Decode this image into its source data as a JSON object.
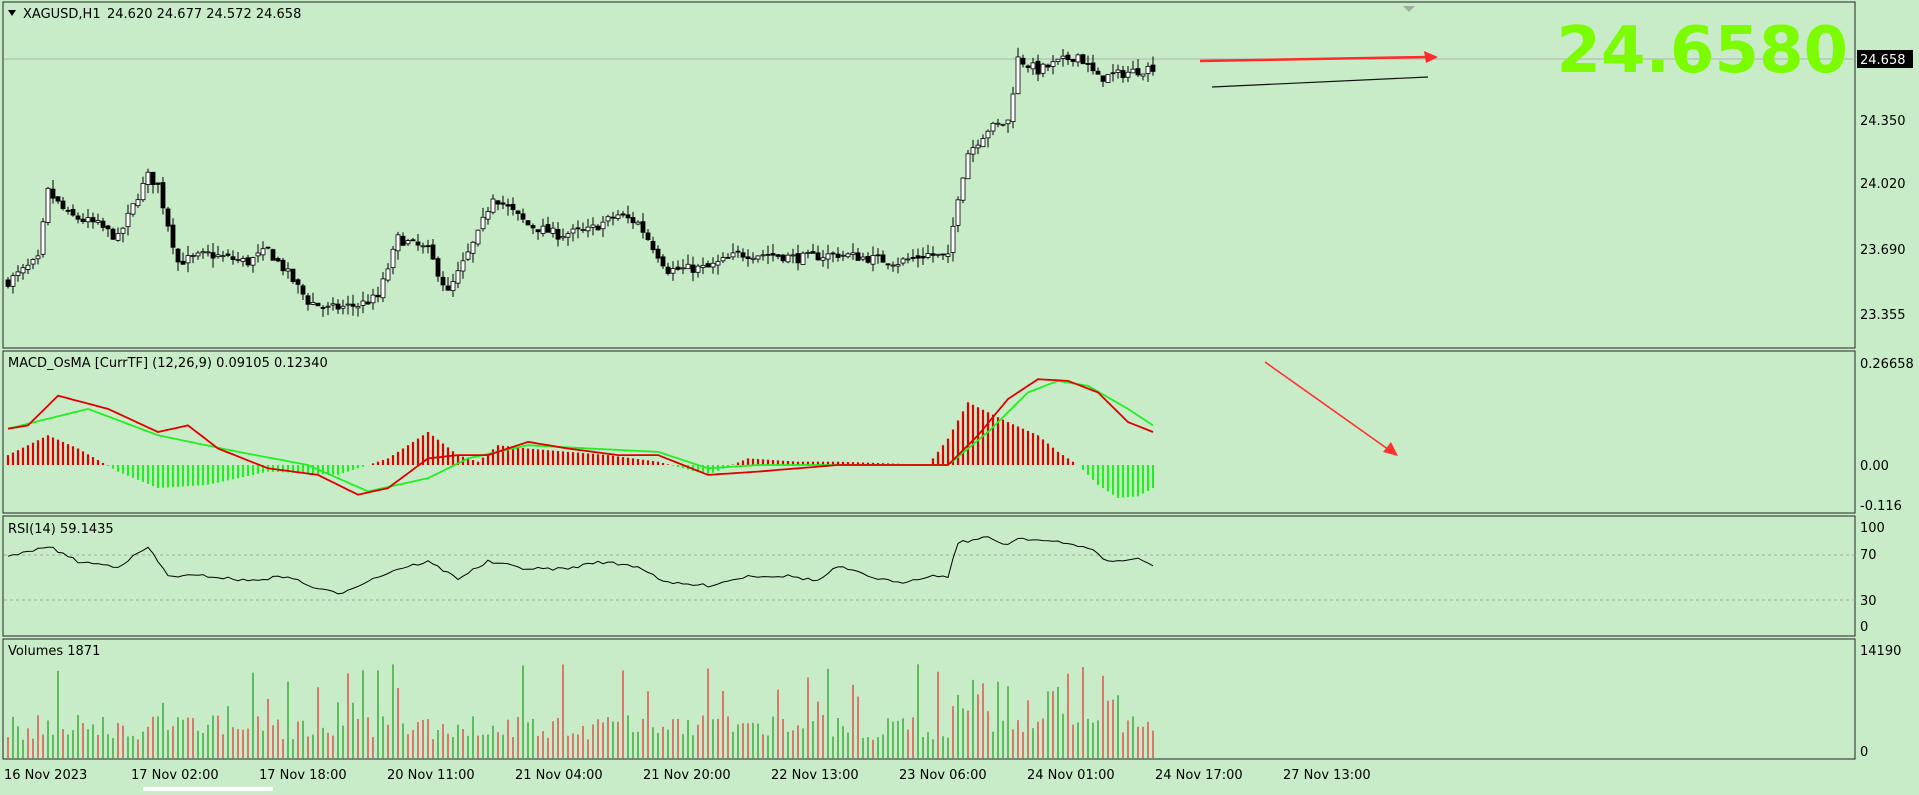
{
  "window": {
    "symbol": "XAGUSD,H1",
    "ohlc": "24.620 24.677 24.572 24.658",
    "big_price": "24.6580",
    "current_price_tag": "24.658"
  },
  "colors": {
    "background": "#c8ecc8",
    "bull": "#ffffff",
    "bear": "#000000",
    "macd_pos": "#e00000",
    "macd_neg": "#22ee22",
    "signal": "#22ee22",
    "macd_line": "#e00000",
    "arrow": "#ff2020",
    "big_price": "#7cfc00",
    "vol_up": "#1a9a1a",
    "vol_down": "#e03030"
  },
  "price_panel": {
    "axis_labels": [
      "24.658",
      "24.350",
      "24.020",
      "23.690",
      "23.355"
    ],
    "ylim": [
      23.22,
      24.99
    ]
  },
  "macd_panel": {
    "label": "MACD_OsMA [CurrTF] (12,26,9) 0.09105 0.12340",
    "axis_labels": [
      "0.26658",
      "0.00",
      "-0.116"
    ],
    "ylim": [
      -0.15,
      0.28
    ]
  },
  "rsi_panel": {
    "label": "RSI(14) 59.1435",
    "axis_labels": [
      "100",
      "70",
      "30",
      "0"
    ],
    "levels": [
      70,
      30
    ]
  },
  "volume_panel": {
    "label": "Volumes 1871",
    "axis_labels": [
      "14190",
      "0"
    ],
    "max": 14190
  },
  "time_labels": [
    "16 Nov 2023",
    "17 Nov 02:00",
    "17 Nov 18:00",
    "20 Nov 11:00",
    "21 Nov 04:00",
    "21 Nov 20:00",
    "22 Nov 13:00",
    "23 Nov 06:00",
    "24 Nov 01:00",
    "24 Nov 17:00",
    "27 Nov 13:00"
  ],
  "chart_data": {
    "type": "candlestick",
    "symbol": "XAGUSD",
    "timeframe": "H1",
    "close_anchors": [
      [
        0,
        23.56
      ],
      [
        6,
        23.67
      ],
      [
        8,
        24.02
      ],
      [
        12,
        23.9
      ],
      [
        18,
        23.85
      ],
      [
        22,
        23.78
      ],
      [
        26,
        24.0
      ],
      [
        28,
        24.1
      ],
      [
        30,
        24.05
      ],
      [
        34,
        23.66
      ],
      [
        40,
        23.7
      ],
      [
        44,
        23.68
      ],
      [
        48,
        23.66
      ],
      [
        52,
        23.72
      ],
      [
        56,
        23.6
      ],
      [
        60,
        23.46
      ],
      [
        64,
        23.42
      ],
      [
        70,
        23.44
      ],
      [
        74,
        23.48
      ],
      [
        78,
        23.78
      ],
      [
        84,
        23.72
      ],
      [
        88,
        23.5
      ],
      [
        94,
        23.8
      ],
      [
        97,
        24.0
      ],
      [
        104,
        23.85
      ],
      [
        110,
        23.8
      ],
      [
        116,
        23.82
      ],
      [
        122,
        23.9
      ],
      [
        126,
        23.86
      ],
      [
        132,
        23.62
      ],
      [
        140,
        23.63
      ],
      [
        146,
        23.7
      ],
      [
        152,
        23.7
      ],
      [
        158,
        23.68
      ],
      [
        166,
        23.7
      ],
      [
        172,
        23.68
      ],
      [
        178,
        23.66
      ],
      [
        184,
        23.7
      ],
      [
        188,
        23.68
      ],
      [
        190,
        24.0
      ],
      [
        192,
        24.22
      ],
      [
        196,
        24.34
      ],
      [
        200,
        24.38
      ],
      [
        202,
        24.7
      ],
      [
        206,
        24.64
      ],
      [
        210,
        24.68
      ],
      [
        214,
        24.72
      ],
      [
        218,
        24.6
      ],
      [
        222,
        24.62
      ],
      [
        226,
        24.64
      ],
      [
        229,
        24.658
      ]
    ],
    "macd_anchors": [
      [
        0,
        0.03
      ],
      [
        8,
        0.09
      ],
      [
        14,
        0.05
      ],
      [
        22,
        -0.02
      ],
      [
        30,
        -0.07
      ],
      [
        40,
        -0.06
      ],
      [
        52,
        -0.02
      ],
      [
        66,
        -0.03
      ],
      [
        76,
        0.02
      ],
      [
        84,
        0.1
      ],
      [
        90,
        0.03
      ],
      [
        94,
        0.01
      ],
      [
        98,
        0.06
      ],
      [
        104,
        0.05
      ],
      [
        112,
        0.04
      ],
      [
        120,
        0.03
      ],
      [
        130,
        0.01
      ],
      [
        140,
        -0.03
      ],
      [
        148,
        0.02
      ],
      [
        158,
        0.01
      ],
      [
        166,
        0.01
      ],
      [
        176,
        0.005
      ],
      [
        184,
        0.0
      ],
      [
        188,
        0.08
      ],
      [
        192,
        0.19
      ],
      [
        196,
        0.16
      ],
      [
        200,
        0.13
      ],
      [
        206,
        0.09
      ],
      [
        210,
        0.04
      ],
      [
        214,
        0.0
      ],
      [
        218,
        -0.06
      ],
      [
        222,
        -0.1
      ],
      [
        226,
        -0.095
      ],
      [
        229,
        -0.07
      ]
    ],
    "signal_anchors": [
      [
        0,
        0.11
      ],
      [
        16,
        0.17
      ],
      [
        30,
        0.09
      ],
      [
        46,
        0.04
      ],
      [
        60,
        0.0
      ],
      [
        72,
        -0.08
      ],
      [
        84,
        -0.04
      ],
      [
        92,
        0.02
      ],
      [
        104,
        0.06
      ],
      [
        116,
        0.05
      ],
      [
        130,
        0.04
      ],
      [
        140,
        -0.01
      ],
      [
        150,
        0.0
      ],
      [
        166,
        0.0
      ],
      [
        180,
        0.0
      ],
      [
        188,
        0.0
      ],
      [
        196,
        0.1
      ],
      [
        204,
        0.22
      ],
      [
        210,
        0.255
      ],
      [
        216,
        0.24
      ],
      [
        224,
        0.17
      ],
      [
        229,
        0.12
      ]
    ],
    "macd_line_anchors": [
      [
        0,
        0.11
      ],
      [
        4,
        0.12
      ],
      [
        10,
        0.21
      ],
      [
        20,
        0.17
      ],
      [
        30,
        0.1
      ],
      [
        36,
        0.12
      ],
      [
        42,
        0.05
      ],
      [
        52,
        -0.01
      ],
      [
        62,
        -0.03
      ],
      [
        70,
        -0.09
      ],
      [
        76,
        -0.07
      ],
      [
        84,
        0.02
      ],
      [
        90,
        0.03
      ],
      [
        96,
        0.03
      ],
      [
        104,
        0.07
      ],
      [
        112,
        0.05
      ],
      [
        122,
        0.03
      ],
      [
        130,
        0.03
      ],
      [
        140,
        -0.03
      ],
      [
        150,
        -0.02
      ],
      [
        166,
        0.0
      ],
      [
        180,
        0.0
      ],
      [
        188,
        0.0
      ],
      [
        194,
        0.09
      ],
      [
        200,
        0.2
      ],
      [
        206,
        0.26
      ],
      [
        212,
        0.255
      ],
      [
        218,
        0.22
      ],
      [
        224,
        0.13
      ],
      [
        229,
        0.1
      ]
    ],
    "rsi_anchors": [
      [
        0,
        66
      ],
      [
        6,
        72
      ],
      [
        8,
        75
      ],
      [
        14,
        62
      ],
      [
        22,
        58
      ],
      [
        28,
        74
      ],
      [
        32,
        50
      ],
      [
        40,
        50
      ],
      [
        48,
        46
      ],
      [
        56,
        50
      ],
      [
        60,
        42
      ],
      [
        66,
        35
      ],
      [
        72,
        46
      ],
      [
        78,
        56
      ],
      [
        84,
        62
      ],
      [
        90,
        48
      ],
      [
        96,
        62
      ],
      [
        104,
        56
      ],
      [
        112,
        56
      ],
      [
        118,
        62
      ],
      [
        126,
        58
      ],
      [
        132,
        44
      ],
      [
        140,
        42
      ],
      [
        148,
        50
      ],
      [
        156,
        50
      ],
      [
        162,
        46
      ],
      [
        166,
        58
      ],
      [
        172,
        50
      ],
      [
        178,
        44
      ],
      [
        184,
        50
      ],
      [
        188,
        50
      ],
      [
        190,
        78
      ],
      [
        196,
        82
      ],
      [
        200,
        76
      ],
      [
        202,
        82
      ],
      [
        210,
        78
      ],
      [
        216,
        74
      ],
      [
        220,
        62
      ],
      [
        226,
        64
      ],
      [
        229,
        59.14
      ]
    ]
  }
}
